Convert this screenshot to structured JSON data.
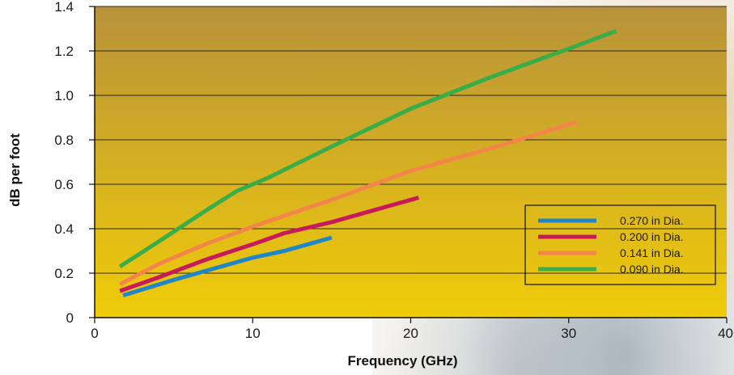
{
  "chart_data": {
    "type": "line",
    "title": "",
    "xlabel": "Frequency (GHz)",
    "ylabel": "dB per foot",
    "xlim": [
      0,
      40
    ],
    "ylim": [
      0,
      1.4
    ],
    "x_ticks": [
      0,
      10,
      20,
      30,
      40
    ],
    "x_tick_labels": [
      "0",
      "10",
      "20",
      "30",
      "40"
    ],
    "y_ticks": [
      0,
      0.2,
      0.4,
      0.6,
      0.8,
      1.0,
      1.2,
      1.4
    ],
    "y_tick_labels": [
      "0",
      "0.2",
      "0.4",
      "0.6",
      "0.8",
      "1.0",
      "1.2",
      "1.4"
    ],
    "grid": "horizontal",
    "legend_position": "bottom-right",
    "background": {
      "top": "#b8923a",
      "bottom": "#f0cc0a"
    },
    "series": [
      {
        "name": "0.270 in Dia.",
        "color": "#1f86c8",
        "points": [
          [
            1.8,
            0.1
          ],
          [
            5,
            0.17
          ],
          [
            10,
            0.27
          ],
          [
            12,
            0.3
          ],
          [
            15,
            0.36
          ]
        ]
      },
      {
        "name": "0.200 in Dia.",
        "color": "#c8195a",
        "points": [
          [
            1.6,
            0.12
          ],
          [
            4,
            0.18
          ],
          [
            7,
            0.26
          ],
          [
            10,
            0.33
          ],
          [
            12,
            0.38
          ],
          [
            15,
            0.43
          ],
          [
            20.5,
            0.54
          ]
        ]
      },
      {
        "name": "0.141 in Dia.",
        "color": "#f4854a",
        "points": [
          [
            1.6,
            0.15
          ],
          [
            4,
            0.24
          ],
          [
            7,
            0.33
          ],
          [
            10,
            0.41
          ],
          [
            15,
            0.53
          ],
          [
            20,
            0.66
          ],
          [
            25,
            0.76
          ],
          [
            30.5,
            0.88
          ]
        ]
      },
      {
        "name": "0.090 in Dia.",
        "color": "#38ad4a",
        "points": [
          [
            1.6,
            0.23
          ],
          [
            4,
            0.34
          ],
          [
            7,
            0.48
          ],
          [
            9,
            0.57
          ],
          [
            11,
            0.63
          ],
          [
            15,
            0.77
          ],
          [
            20,
            0.94
          ],
          [
            25,
            1.08
          ],
          [
            30,
            1.21
          ],
          [
            33,
            1.29
          ]
        ]
      }
    ]
  }
}
